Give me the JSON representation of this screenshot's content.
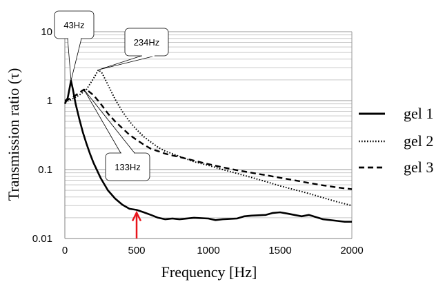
{
  "chart_data": {
    "type": "line",
    "xlabel": "Frequency [Hz]",
    "ylabel": "Transmission ratio (τ)",
    "x_scale": "linear",
    "y_scale": "log",
    "xlim": [
      0,
      2000
    ],
    "ylim": [
      0.01,
      10
    ],
    "x_ticks": [
      {
        "value": 0,
        "label": "0"
      },
      {
        "value": 500,
        "label": "500"
      },
      {
        "value": 1000,
        "label": "1000"
      },
      {
        "value": 1500,
        "label": "1500"
      },
      {
        "value": 2000,
        "label": "2000"
      }
    ],
    "y_ticks": [
      {
        "value": 0.01,
        "label": "0.01"
      },
      {
        "value": 0.1,
        "label": "0.1"
      },
      {
        "value": 1,
        "label": "1"
      },
      {
        "value": 10,
        "label": "10"
      }
    ],
    "grid": true,
    "legend_position": "right",
    "series": [
      {
        "name": "gel 1",
        "style": "solid",
        "color": "#000000",
        "points": [
          [
            0,
            0.9
          ],
          [
            20,
            1.1
          ],
          [
            35,
            1.6
          ],
          [
            43,
            1.95
          ],
          [
            55,
            1.5
          ],
          [
            75,
            0.9
          ],
          [
            100,
            0.55
          ],
          [
            125,
            0.35
          ],
          [
            150,
            0.24
          ],
          [
            175,
            0.17
          ],
          [
            200,
            0.125
          ],
          [
            250,
            0.075
          ],
          [
            300,
            0.05
          ],
          [
            350,
            0.038
          ],
          [
            400,
            0.031
          ],
          [
            450,
            0.027
          ],
          [
            500,
            0.026
          ],
          [
            550,
            0.024
          ],
          [
            600,
            0.022
          ],
          [
            650,
            0.02
          ],
          [
            700,
            0.019
          ],
          [
            750,
            0.0195
          ],
          [
            800,
            0.019
          ],
          [
            900,
            0.02
          ],
          [
            1000,
            0.0195
          ],
          [
            1050,
            0.0185
          ],
          [
            1100,
            0.019
          ],
          [
            1200,
            0.0195
          ],
          [
            1250,
            0.021
          ],
          [
            1300,
            0.0215
          ],
          [
            1400,
            0.022
          ],
          [
            1450,
            0.0235
          ],
          [
            1500,
            0.024
          ],
          [
            1550,
            0.023
          ],
          [
            1600,
            0.022
          ],
          [
            1650,
            0.021
          ],
          [
            1700,
            0.022
          ],
          [
            1800,
            0.019
          ],
          [
            1900,
            0.018
          ],
          [
            1950,
            0.0175
          ],
          [
            2000,
            0.0175
          ]
        ]
      },
      {
        "name": "gel 2",
        "style": "dotted",
        "color": "#000000",
        "points": [
          [
            0,
            0.95
          ],
          [
            50,
            1.05
          ],
          [
            100,
            1.2
          ],
          [
            150,
            1.45
          ],
          [
            200,
            2.1
          ],
          [
            234,
            2.8
          ],
          [
            260,
            2.5
          ],
          [
            300,
            1.7
          ],
          [
            350,
            1.05
          ],
          [
            400,
            0.7
          ],
          [
            450,
            0.5
          ],
          [
            500,
            0.38
          ],
          [
            550,
            0.3
          ],
          [
            600,
            0.25
          ],
          [
            650,
            0.21
          ],
          [
            700,
            0.185
          ],
          [
            750,
            0.17
          ],
          [
            800,
            0.155
          ],
          [
            900,
            0.13
          ],
          [
            1000,
            0.115
          ],
          [
            1100,
            0.1
          ],
          [
            1200,
            0.088
          ],
          [
            1300,
            0.077
          ],
          [
            1400,
            0.067
          ],
          [
            1500,
            0.058
          ],
          [
            1600,
            0.051
          ],
          [
            1700,
            0.045
          ],
          [
            1800,
            0.039
          ],
          [
            1900,
            0.034
          ],
          [
            2000,
            0.03
          ]
        ]
      },
      {
        "name": "gel 3",
        "style": "dashed",
        "color": "#000000",
        "points": [
          [
            0,
            1.0
          ],
          [
            50,
            1.1
          ],
          [
            100,
            1.3
          ],
          [
            133,
            1.45
          ],
          [
            160,
            1.4
          ],
          [
            200,
            1.2
          ],
          [
            250,
            0.9
          ],
          [
            300,
            0.65
          ],
          [
            350,
            0.5
          ],
          [
            400,
            0.4
          ],
          [
            450,
            0.32
          ],
          [
            500,
            0.27
          ],
          [
            550,
            0.23
          ],
          [
            600,
            0.2
          ],
          [
            650,
            0.185
          ],
          [
            700,
            0.17
          ],
          [
            750,
            0.16
          ],
          [
            800,
            0.152
          ],
          [
            900,
            0.135
          ],
          [
            1000,
            0.12
          ],
          [
            1100,
            0.108
          ],
          [
            1200,
            0.098
          ],
          [
            1300,
            0.09
          ],
          [
            1400,
            0.083
          ],
          [
            1500,
            0.076
          ],
          [
            1600,
            0.07
          ],
          [
            1700,
            0.064
          ],
          [
            1800,
            0.059
          ],
          [
            1900,
            0.055
          ],
          [
            2000,
            0.052
          ]
        ]
      }
    ],
    "annotations": [
      {
        "id": "peak-43",
        "text": "43Hz",
        "target": [
          43,
          1.95
        ]
      },
      {
        "id": "peak-234",
        "text": "234Hz",
        "target": [
          234,
          2.8
        ]
      },
      {
        "id": "peak-133",
        "text": "133Hz",
        "target": [
          133,
          1.45
        ]
      }
    ],
    "marker": {
      "x": 500,
      "color": "#e8141b"
    }
  }
}
